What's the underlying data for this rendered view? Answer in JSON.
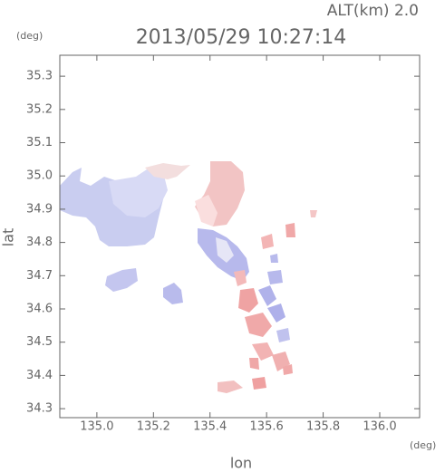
{
  "chart_data": {
    "type": "map",
    "title": "2013/05/29 10:27:14",
    "altitude_label": "ALT(km) 2.0",
    "xlabel": "lon",
    "ylabel": "lat",
    "xunit": "(deg)",
    "yunit": "(deg)",
    "xlim": [
      134.869,
      136.141
    ],
    "ylim": [
      34.273,
      35.363
    ],
    "xticks": [
      {
        "value": 135,
        "label": "135.0"
      },
      135.2,
      135.4,
      135.6,
      135.8,
      {
        "value": 136,
        "label": "136.0"
      }
    ],
    "yticks": [
      35.3,
      35.2,
      35.1,
      {
        "value": 35,
        "label": "35.0"
      },
      34.9,
      34.8,
      34.7,
      34.6,
      34.5,
      34.4,
      34.3
    ]
  }
}
